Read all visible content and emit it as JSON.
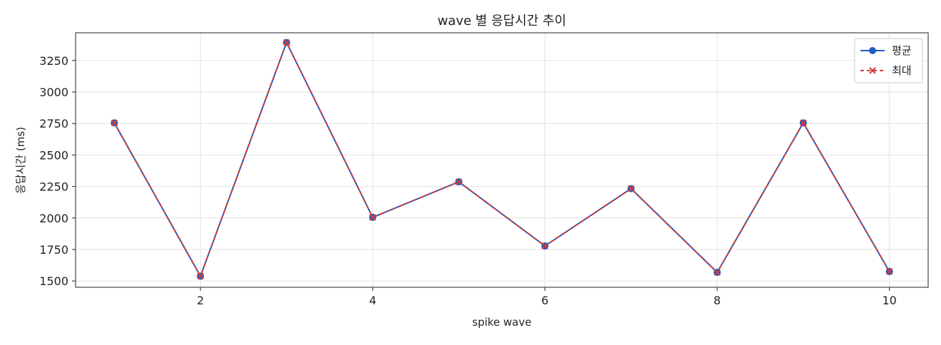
{
  "chart_data": {
    "type": "line",
    "title": "wave 별 응답시간 추이",
    "xlabel": "spike wave",
    "ylabel": "응답시간 (ms)",
    "x": [
      1,
      2,
      3,
      4,
      5,
      6,
      7,
      8,
      9,
      10
    ],
    "xlim": [
      0.55,
      10.45
    ],
    "ylim": [
      1450,
      3470
    ],
    "xticks": [
      2,
      4,
      6,
      8,
      10
    ],
    "yticks": [
      1500,
      1750,
      2000,
      2250,
      2500,
      2750,
      3000,
      3250
    ],
    "grid": true,
    "legend_position": "top-right",
    "series": [
      {
        "name": "평균",
        "color": "#1f5fbf",
        "marker": "circle",
        "line_style": "solid",
        "values": [
          2755,
          1538,
          3393,
          2005,
          2287,
          1778,
          2233,
          1568,
          2755,
          1575
        ]
      },
      {
        "name": "최대",
        "color": "#d13b3b",
        "marker": "x",
        "line_style": "dashed",
        "values": [
          2755,
          1538,
          3393,
          2005,
          2287,
          1778,
          2233,
          1568,
          2755,
          1575
        ]
      }
    ]
  }
}
